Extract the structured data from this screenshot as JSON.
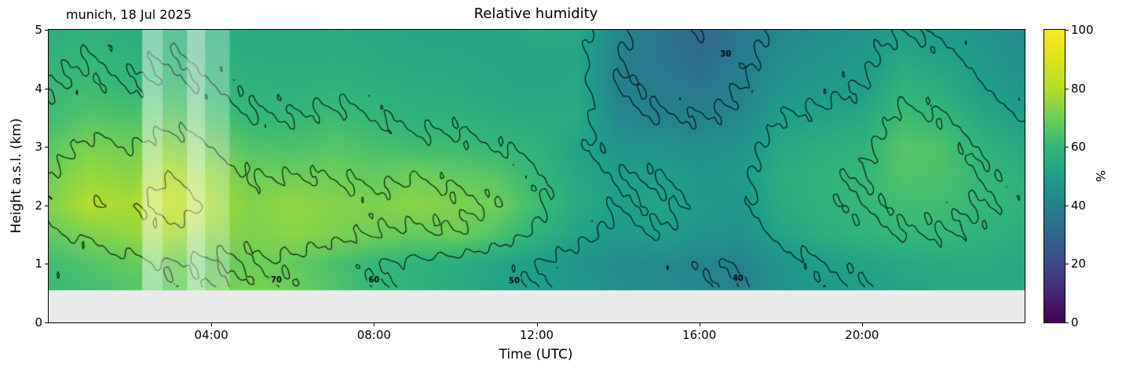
{
  "chart_data": {
    "type": "heatmap",
    "title": "Relative humidity",
    "annotation": "munich, 18 Jul 2025",
    "xlabel": "Time (UTC)",
    "ylabel": "Height a.s.l. (km)",
    "xlim": [
      0,
      24
    ],
    "ylim": [
      0,
      5
    ],
    "x_ticks": [
      {
        "value": 4,
        "label": "04:00"
      },
      {
        "value": 8,
        "label": "08:00"
      },
      {
        "value": 12,
        "label": "12:00"
      },
      {
        "value": 16,
        "label": "16:00"
      },
      {
        "value": 20,
        "label": "20:00"
      }
    ],
    "y_ticks": [
      {
        "value": 0,
        "label": "0"
      },
      {
        "value": 1,
        "label": "1"
      },
      {
        "value": 2,
        "label": "2"
      },
      {
        "value": 3,
        "label": "3"
      },
      {
        "value": 4,
        "label": "4"
      },
      {
        "value": 5,
        "label": "5"
      }
    ],
    "colorbar": {
      "label": "%",
      "min": 0,
      "max": 100,
      "ticks": [
        0,
        20,
        40,
        60,
        80,
        100
      ],
      "colormap": "viridis"
    },
    "no_data_below_km": 0.55,
    "no_data_color": "#eaeaea",
    "hours": [
      0,
      1,
      2,
      3,
      4,
      5,
      6,
      7,
      8,
      9,
      10,
      11,
      12,
      13,
      14,
      15,
      16,
      17,
      18,
      19,
      20,
      21,
      22,
      23,
      24
    ],
    "heights_km": [
      0.5,
      1.0,
      1.5,
      2.0,
      2.5,
      3.0,
      3.5,
      4.0,
      4.5,
      5.0
    ],
    "rh_grid": [
      [
        60,
        62,
        65,
        68,
        70,
        72,
        70,
        65,
        60,
        58,
        55,
        52,
        50,
        48,
        45,
        43,
        42,
        40,
        45,
        48,
        50,
        52,
        53,
        54,
        55
      ],
      [
        62,
        65,
        68,
        70,
        68,
        70,
        68,
        64,
        60,
        58,
        56,
        53,
        50,
        46,
        43,
        42,
        41,
        40,
        46,
        50,
        52,
        54,
        55,
        55,
        54
      ],
      [
        68,
        72,
        75,
        78,
        74,
        72,
        74,
        72,
        70,
        68,
        70,
        65,
        58,
        52,
        48,
        50,
        46,
        45,
        52,
        56,
        58,
        60,
        60,
        58,
        56
      ],
      [
        72,
        80,
        78,
        85,
        78,
        73,
        75,
        73,
        72,
        74,
        72,
        70,
        62,
        55,
        50,
        52,
        48,
        47,
        55,
        58,
        60,
        62,
        62,
        60,
        58
      ],
      [
        70,
        76,
        74,
        80,
        75,
        70,
        70,
        70,
        68,
        70,
        68,
        66,
        60,
        54,
        50,
        50,
        47,
        48,
        56,
        58,
        60,
        65,
        64,
        60,
        57
      ],
      [
        66,
        72,
        70,
        74,
        70,
        65,
        64,
        66,
        64,
        62,
        62,
        60,
        58,
        52,
        46,
        46,
        44,
        46,
        54,
        56,
        58,
        66,
        64,
        58,
        54
      ],
      [
        62,
        66,
        64,
        68,
        64,
        60,
        60,
        62,
        60,
        58,
        58,
        56,
        55,
        55,
        42,
        40,
        40,
        42,
        50,
        52,
        54,
        62,
        60,
        54,
        50
      ],
      [
        60,
        62,
        60,
        62,
        60,
        58,
        57,
        58,
        57,
        56,
        55,
        54,
        53,
        54,
        40,
        38,
        36,
        40,
        46,
        48,
        50,
        58,
        56,
        50,
        46
      ],
      [
        58,
        60,
        58,
        60,
        58,
        56,
        56,
        56,
        55,
        54,
        54,
        53,
        52,
        53,
        40,
        36,
        32,
        38,
        44,
        46,
        48,
        54,
        52,
        48,
        44
      ],
      [
        56,
        58,
        56,
        58,
        56,
        55,
        55,
        55,
        54,
        53,
        52,
        52,
        55,
        54,
        42,
        35,
        30,
        36,
        42,
        44,
        46,
        50,
        48,
        46,
        43
      ]
    ],
    "contour_levels": [
      30,
      40,
      50,
      60,
      70,
      80
    ],
    "contour_labels": [
      {
        "text": "70",
        "t": 5.6,
        "h": 0.72
      },
      {
        "text": "60",
        "t": 8.0,
        "h": 0.72
      },
      {
        "text": "50",
        "t": 11.45,
        "h": 0.7
      },
      {
        "text": "40",
        "t": 16.95,
        "h": 0.75
      },
      {
        "text": "30",
        "t": 16.65,
        "h": 4.58
      }
    ],
    "highlight_bands": [
      {
        "t0": 2.3,
        "t1": 2.8,
        "opacity": 0.45
      },
      {
        "t0": 2.8,
        "t1": 3.4,
        "opacity": 0.22
      },
      {
        "t0": 3.4,
        "t1": 3.85,
        "opacity": 0.5
      },
      {
        "t0": 3.85,
        "t1": 4.45,
        "opacity": 0.28
      }
    ],
    "colormap_stops": [
      [
        0.0,
        68,
        1,
        84
      ],
      [
        0.1,
        72,
        40,
        120
      ],
      [
        0.2,
        62,
        74,
        137
      ],
      [
        0.3,
        49,
        104,
        142
      ],
      [
        0.4,
        38,
        130,
        142
      ],
      [
        0.5,
        31,
        158,
        137
      ],
      [
        0.6,
        53,
        183,
        121
      ],
      [
        0.7,
        110,
        206,
        88
      ],
      [
        0.8,
        181,
        222,
        43
      ],
      [
        0.9,
        222,
        227,
        24
      ],
      [
        1.0,
        253,
        231,
        37
      ]
    ]
  }
}
